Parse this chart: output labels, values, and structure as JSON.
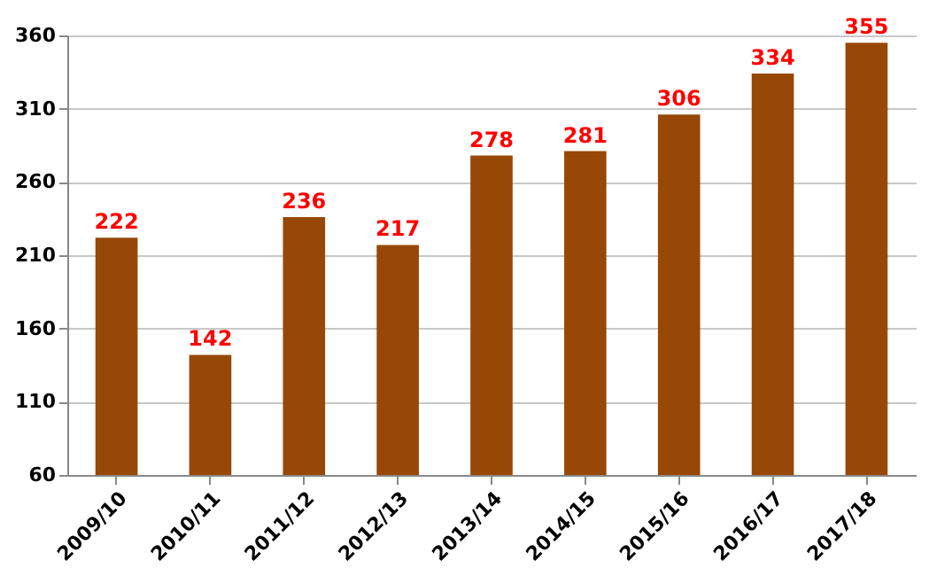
{
  "chart_data": {
    "type": "bar",
    "categories": [
      "2009/10",
      "2010/11",
      "2011/12",
      "2012/13",
      "2013/14",
      "2014/15",
      "2015/16",
      "2016/17",
      "2017/18"
    ],
    "values": [
      222,
      142,
      236,
      217,
      278,
      281,
      306,
      334,
      355
    ],
    "color": "#974806",
    "ylim": [
      60,
      360
    ],
    "yticks": [
      60,
      110,
      160,
      210,
      260,
      310,
      360
    ],
    "grid": "y",
    "data_labels": true
  }
}
